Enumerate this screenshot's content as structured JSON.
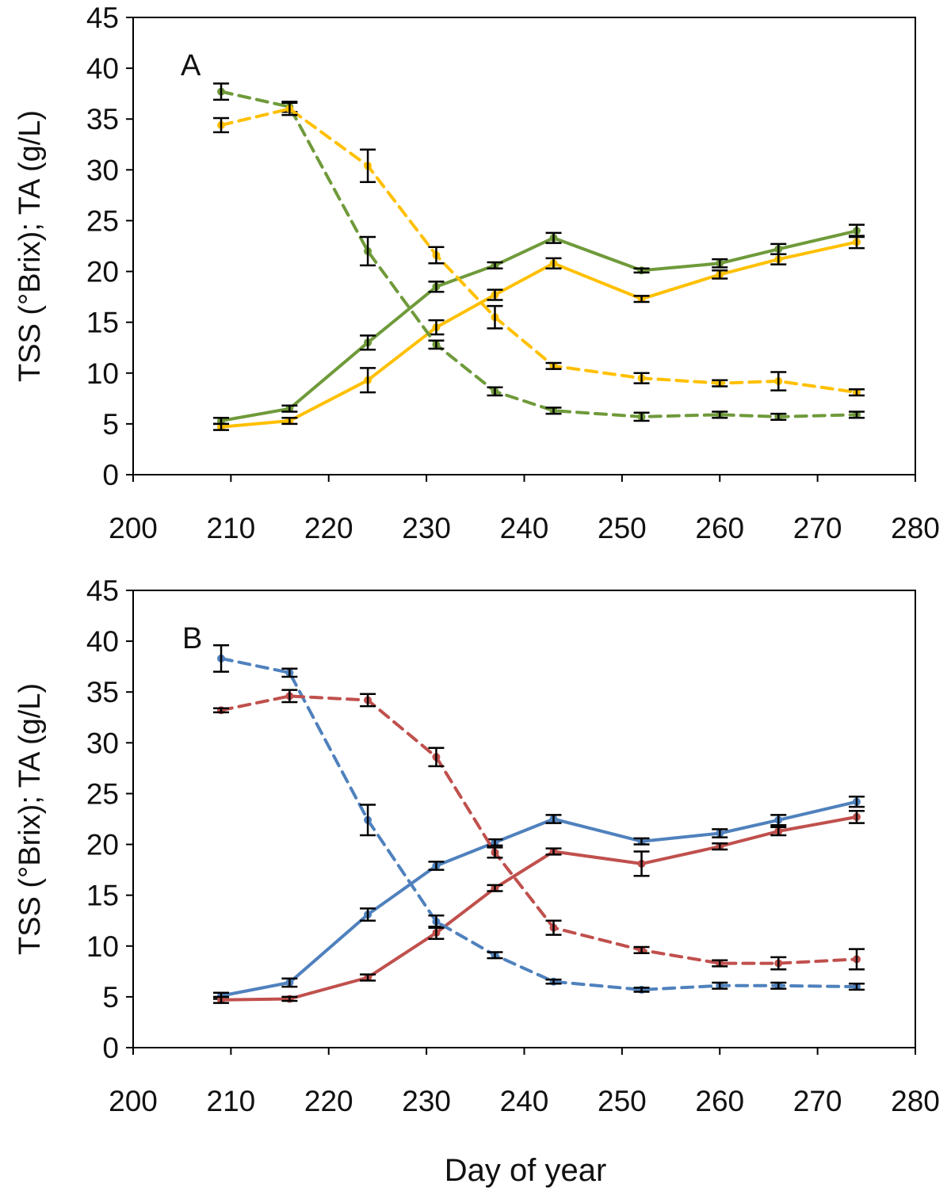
{
  "chart_data": [
    {
      "type": "line",
      "panel_label": "A",
      "ylabel": "TSS (°Brix); TA (g/L)",
      "xlabel": "",
      "xlim": [
        200,
        280
      ],
      "ylim": [
        0,
        45
      ],
      "x_ticks": [
        200,
        210,
        220,
        230,
        240,
        250,
        260,
        270,
        280
      ],
      "y_ticks": [
        0,
        5,
        10,
        15,
        20,
        25,
        30,
        35,
        40,
        45
      ],
      "grid": false,
      "series": [
        {
          "color": "#6f9a3a",
          "dash": "solid",
          "x": [
            209,
            216,
            224,
            231,
            237,
            243,
            252,
            260,
            266,
            274
          ],
          "values": [
            5.3,
            6.5,
            13.0,
            18.5,
            20.6,
            23.3,
            20.1,
            20.8,
            22.2,
            24.0
          ],
          "errors": [
            0.3,
            0.3,
            0.7,
            0.5,
            0.3,
            0.5,
            0.2,
            0.4,
            0.5,
            0.6
          ]
        },
        {
          "color": "#ffc000",
          "dash": "solid",
          "x": [
            209,
            216,
            224,
            231,
            237,
            243,
            252,
            260,
            266,
            274
          ],
          "values": [
            4.7,
            5.3,
            9.3,
            14.5,
            17.7,
            20.8,
            17.3,
            19.7,
            21.2,
            22.9
          ],
          "errors": [
            0.3,
            0.3,
            1.2,
            0.7,
            0.5,
            0.5,
            0.3,
            0.4,
            0.5,
            0.6
          ]
        },
        {
          "color": "#6f9a3a",
          "dash": "dashed",
          "x": [
            209,
            216,
            224,
            231,
            237,
            243,
            252,
            260,
            266,
            274
          ],
          "values": [
            37.7,
            36.2,
            22.0,
            12.8,
            8.2,
            6.3,
            5.7,
            5.9,
            5.7,
            5.9
          ],
          "errors": [
            0.8,
            0.5,
            1.4,
            0.4,
            0.4,
            0.3,
            0.4,
            0.3,
            0.3,
            0.3
          ]
        },
        {
          "color": "#ffc000",
          "dash": "dashed",
          "x": [
            209,
            216,
            224,
            231,
            237,
            243,
            252,
            260,
            266,
            274
          ],
          "values": [
            34.4,
            36.0,
            30.4,
            21.6,
            15.5,
            10.7,
            9.5,
            9.0,
            9.2,
            8.1
          ],
          "errors": [
            0.7,
            0.6,
            1.6,
            0.8,
            1.1,
            0.3,
            0.5,
            0.3,
            0.9,
            0.3
          ]
        }
      ]
    },
    {
      "type": "line",
      "panel_label": "B",
      "ylabel": "TSS (°Brix); TA (g/L)",
      "xlabel": "Day of year",
      "xlim": [
        200,
        280
      ],
      "ylim": [
        0,
        45
      ],
      "x_ticks": [
        200,
        210,
        220,
        230,
        240,
        250,
        260,
        270,
        280
      ],
      "y_ticks": [
        0,
        5,
        10,
        15,
        20,
        25,
        30,
        35,
        40,
        45
      ],
      "grid": false,
      "series": [
        {
          "color": "#4f81bd",
          "dash": "solid",
          "x": [
            209,
            216,
            224,
            231,
            237,
            243,
            252,
            260,
            266,
            274
          ],
          "values": [
            5.1,
            6.4,
            13.1,
            17.9,
            20.2,
            22.5,
            20.3,
            21.1,
            22.4,
            24.2
          ],
          "errors": [
            0.3,
            0.4,
            0.6,
            0.4,
            0.3,
            0.4,
            0.3,
            0.4,
            0.5,
            0.5
          ]
        },
        {
          "color": "#c0504d",
          "dash": "solid",
          "x": [
            209,
            216,
            224,
            231,
            237,
            243,
            252,
            260,
            266,
            274
          ],
          "values": [
            4.7,
            4.8,
            6.9,
            11.3,
            15.7,
            19.3,
            18.1,
            19.8,
            21.3,
            22.7
          ],
          "errors": [
            0.3,
            0.2,
            0.3,
            0.6,
            0.3,
            0.3,
            1.2,
            0.3,
            0.4,
            0.6
          ]
        },
        {
          "color": "#4f81bd",
          "dash": "dashed",
          "x": [
            209,
            216,
            224,
            231,
            237,
            243,
            252,
            260,
            266,
            274
          ],
          "values": [
            38.3,
            36.9,
            22.4,
            12.4,
            9.1,
            6.5,
            5.7,
            6.1,
            6.1,
            6.0
          ],
          "errors": [
            1.3,
            0.4,
            1.5,
            0.6,
            0.3,
            0.2,
            0.2,
            0.3,
            0.3,
            0.3
          ]
        },
        {
          "color": "#c0504d",
          "dash": "dashed",
          "x": [
            209,
            216,
            224,
            231,
            237,
            243,
            252,
            260,
            266,
            274
          ],
          "values": [
            33.2,
            34.6,
            34.2,
            28.6,
            19.2,
            11.8,
            9.6,
            8.3,
            8.3,
            8.7
          ],
          "errors": [
            0.2,
            0.6,
            0.6,
            0.9,
            0.5,
            0.7,
            0.3,
            0.3,
            0.6,
            1.0
          ]
        }
      ]
    }
  ]
}
